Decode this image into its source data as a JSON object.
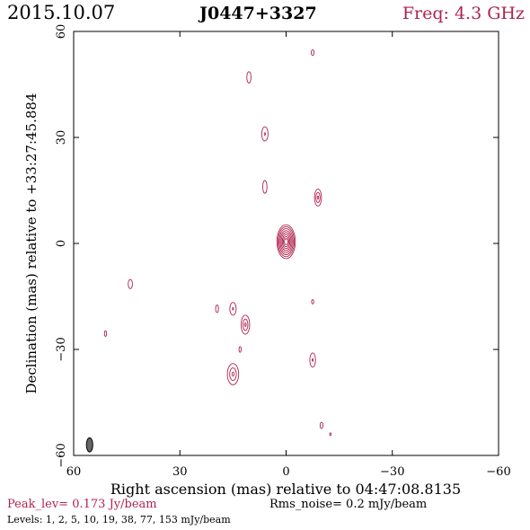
{
  "header": {
    "date": "2015.10.07",
    "source": "J0447+3327",
    "frequency": "Freq: 4.3 GHz"
  },
  "chart_data": {
    "type": "contour",
    "title": "J0447+3327",
    "xlabel": "Right ascension (mas) relative to 04:47:08.8135",
    "ylabel": "Declination (mas) relative to +33:27:45.884",
    "xlim": [
      60,
      -60
    ],
    "ylim": [
      -60,
      60
    ],
    "x_ticks": [
      60,
      30,
      0,
      -30,
      -60
    ],
    "y_ticks": [
      60,
      30,
      0,
      -30,
      -60
    ],
    "x_tick_labels": [
      "60",
      "30",
      "0",
      "−30",
      "−60"
    ],
    "y_tick_labels": [
      "60",
      "30",
      "0",
      "−30",
      "−60"
    ],
    "contour_color": "#b0234e",
    "peak_label": "Peak_lev=",
    "peak_value": "0.173 Jy/beam",
    "rms_label": "Rms_noise=",
    "rms_value": "0.2 mJy/beam",
    "levels_label": "Levels:",
    "levels_values": "1,   2,   5,  10,  19,  38,  77, 153 mJy/beam",
    "levels_mJy": [
      1,
      2,
      5,
      10,
      19,
      38,
      77,
      153
    ],
    "components": [
      {
        "ra": 0.0,
        "dec": 0.5,
        "rings": 8,
        "rx": 2.6,
        "ry": 4.8
      },
      {
        "ra": -9.0,
        "dec": 13.0,
        "rings": 3,
        "rx": 1.0,
        "ry": 2.4
      },
      {
        "ra": 6.0,
        "dec": 31.0,
        "rings": 2,
        "rx": 0.9,
        "ry": 2.0
      },
      {
        "ra": 10.5,
        "dec": 47.0,
        "rings": 1,
        "rx": 0.6,
        "ry": 1.6
      },
      {
        "ra": -7.5,
        "dec": 54.0,
        "rings": 1,
        "rx": 0.4,
        "ry": 0.8
      },
      {
        "ra": 6.0,
        "dec": 16.0,
        "rings": 1,
        "rx": 0.6,
        "ry": 1.8
      },
      {
        "ra": 44.0,
        "dec": -11.5,
        "rings": 1,
        "rx": 0.6,
        "ry": 1.3
      },
      {
        "ra": 15.0,
        "dec": -18.5,
        "rings": 2,
        "rx": 0.9,
        "ry": 1.8
      },
      {
        "ra": 15.0,
        "dec": -37.0,
        "rings": 3,
        "rx": 1.6,
        "ry": 3.0
      },
      {
        "ra": 11.5,
        "dec": -23.0,
        "rings": 3,
        "rx": 1.2,
        "ry": 2.7
      },
      {
        "ra": 19.5,
        "dec": -18.5,
        "rings": 1,
        "rx": 0.4,
        "ry": 1.1
      },
      {
        "ra": 13.0,
        "dec": -30.0,
        "rings": 1,
        "rx": 0.3,
        "ry": 0.8
      },
      {
        "ra": -7.5,
        "dec": -33.0,
        "rings": 2,
        "rx": 0.8,
        "ry": 2.0
      },
      {
        "ra": -7.5,
        "dec": -16.5,
        "rings": 1,
        "rx": 0.3,
        "ry": 0.6
      },
      {
        "ra": 51.0,
        "dec": -25.5,
        "rings": 1,
        "rx": 0.3,
        "ry": 0.8
      },
      {
        "ra": -10.0,
        "dec": -51.5,
        "rings": 1,
        "rx": 0.4,
        "ry": 0.9
      },
      {
        "ra": -12.5,
        "dec": -54.0,
        "rings": 1,
        "rx": 0.2,
        "ry": 0.4
      }
    ],
    "beam": {
      "ra": 55.5,
      "dec": -57.0,
      "rx": 0.9,
      "ry": 2.0
    }
  }
}
